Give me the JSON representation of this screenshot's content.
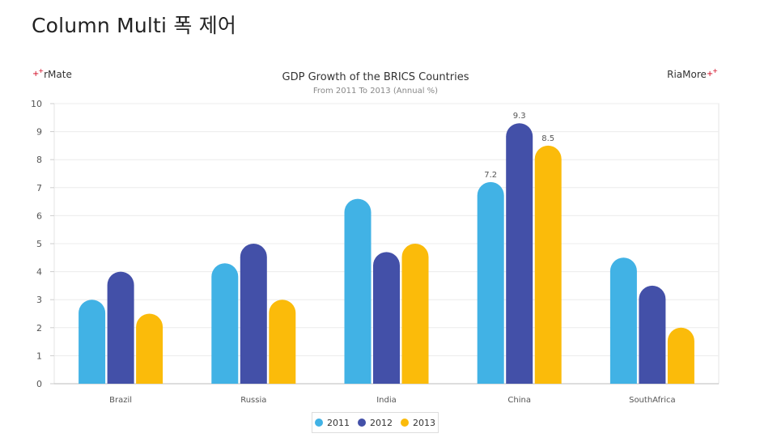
{
  "page": {
    "title": "Column Multi 폭 제어"
  },
  "brand": {
    "left": "rMate",
    "right": "RiaMore"
  },
  "chart_data": {
    "type": "bar",
    "title": "GDP Growth of the BRICS Countries",
    "subtitle": "From 2011 To 2013 (Annual %)",
    "categories": [
      "Brazil",
      "Russia",
      "India",
      "China",
      "SouthAfrica"
    ],
    "series": [
      {
        "name": "2011",
        "color": "#41b2e5",
        "values": [
          3.0,
          4.3,
          6.6,
          7.2,
          4.5
        ]
      },
      {
        "name": "2012",
        "color": "#4350a8",
        "values": [
          4.0,
          5.0,
          4.7,
          9.3,
          3.5
        ]
      },
      {
        "name": "2013",
        "color": "#fbbb0a",
        "values": [
          2.5,
          3.0,
          5.0,
          8.5,
          2.0
        ]
      }
    ],
    "data_labels": [
      {
        "category": "China",
        "series": "2011",
        "text": "7.2"
      },
      {
        "category": "China",
        "series": "2012",
        "text": "9.3"
      },
      {
        "category": "China",
        "series": "2013",
        "text": "8.5"
      }
    ],
    "ylim": [
      0,
      10
    ],
    "yticks": [
      0,
      1,
      2,
      3,
      4,
      5,
      6,
      7,
      8,
      9,
      10
    ],
    "grid": true,
    "legend": "bottom-center"
  }
}
